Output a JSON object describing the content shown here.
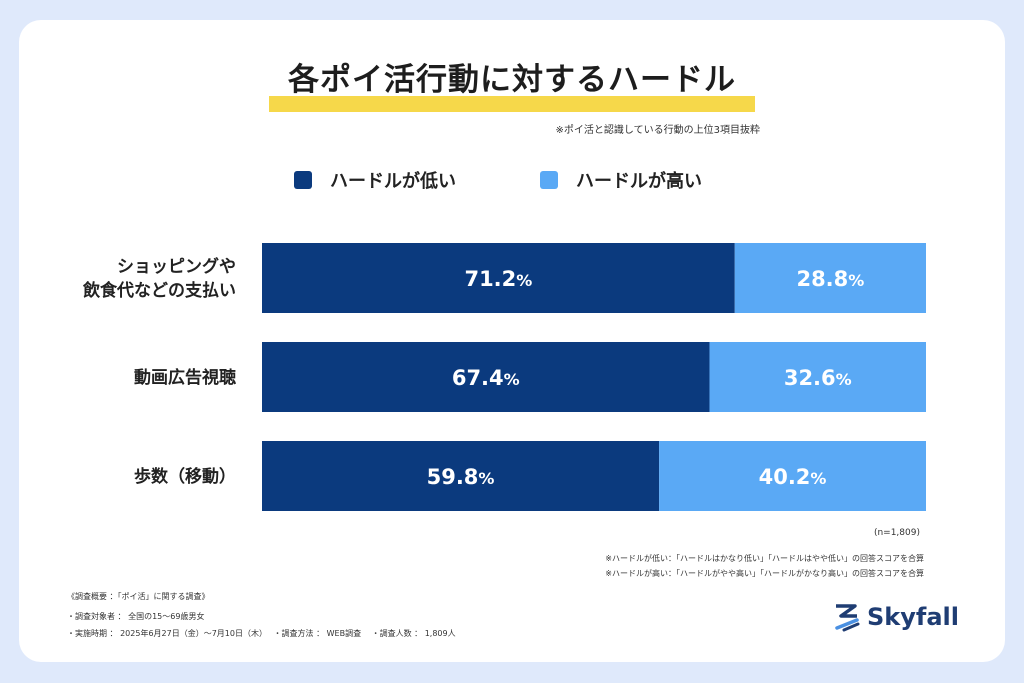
{
  "title": "各ポイ活行動に対するハードル",
  "subnote": "※ポイ活と認識している行動の上位3項目抜粋",
  "legend": [
    {
      "label": "ハードルが低い",
      "color": "#0b3a7e"
    },
    {
      "label": "ハードルが高い",
      "color": "#5aa9f5"
    }
  ],
  "chart_data": {
    "type": "bar",
    "orientation": "horizontal",
    "stacked": true,
    "categories": [
      [
        "ショッピングや",
        "飲食代などの支払い"
      ],
      [
        "動画広告視聴"
      ],
      [
        "歩数（移動）"
      ]
    ],
    "series": [
      {
        "name": "ハードルが低い",
        "values": [
          71.2,
          67.4,
          59.8
        ],
        "color": "#0b3a7e"
      },
      {
        "name": "ハードルが高い",
        "values": [
          28.8,
          32.6,
          40.2
        ],
        "color": "#5aa9f5"
      }
    ],
    "value_suffix": "%",
    "xlim": [
      0,
      100
    ],
    "grid": false,
    "legend_position": "top"
  },
  "n_label": "(n=1,809)",
  "definitions": [
    "※ハードルが低い：「ハードルはかなり低い」「ハードルはやや低い」の回答スコアを合算",
    "※ハードルが高い：「ハードルがやや高い」「ハードルがかなり高い」の回答スコアを合算"
  ],
  "survey": {
    "heading": "《調査概要 ：「ポイ活」に関する調査》",
    "target": "・調査対象者 ： 全国の15～69歳男女",
    "period": "・実施時期 ： 2025年6月27日（金）～7月10日（木）　 ・調査方法 ： WEB調査　 ・調査人数 ： 1,809人"
  },
  "logo": {
    "text": "Skyfall",
    "color": "#1f3d73"
  }
}
